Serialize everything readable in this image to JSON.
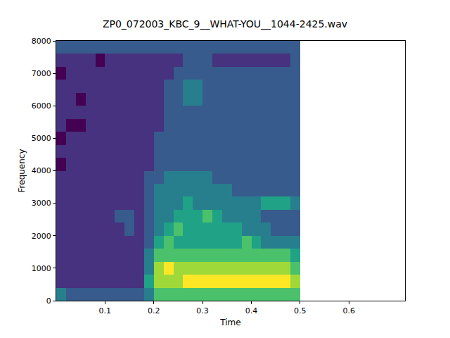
{
  "chart_data": {
    "type": "heatmap",
    "title": "ZP0_072003_KBC_9__WHAT-YOU__1044-2425.wav",
    "x_label": "Time",
    "y_label": "Frequency",
    "color": "Viridis",
    "grid": false,
    "xlim": [
      0,
      0.715
    ],
    "ylim": [
      0,
      8000
    ],
    "xticks": [
      0.1,
      0.2,
      0.3,
      0.4,
      0.5,
      0.6
    ],
    "yticks": [
      0,
      1000,
      2000,
      3000,
      4000,
      5000,
      6000,
      7000,
      8000
    ],
    "x": [
      0.01,
      0.03,
      0.05,
      0.07,
      0.09,
      0.11,
      0.13,
      0.15,
      0.17,
      0.19,
      0.21,
      0.23,
      0.25,
      0.27,
      0.29,
      0.31,
      0.33,
      0.35,
      0.37,
      0.39,
      0.41,
      0.43,
      0.45,
      0.47,
      0.49
    ],
    "y": [
      200,
      600,
      1000,
      1400,
      1800,
      2200,
      2600,
      3000,
      3400,
      3800,
      4200,
      4600,
      5000,
      5400,
      5800,
      6200,
      6600,
      7000,
      7400,
      7800
    ],
    "z": [
      [
        6,
        5,
        5,
        5,
        5,
        5,
        5,
        5,
        5,
        6,
        8,
        8,
        8,
        8,
        8,
        8,
        8,
        8,
        8,
        8,
        8,
        8,
        8,
        8,
        8
      ],
      [
        4,
        4,
        4,
        4,
        4,
        4,
        4,
        4,
        4,
        7,
        9,
        9,
        9,
        10,
        10,
        10,
        10,
        10,
        10,
        10,
        10,
        10,
        10,
        10,
        9
      ],
      [
        4,
        4,
        4,
        4,
        4,
        4,
        4,
        4,
        4,
        6,
        9,
        10,
        9,
        9,
        9,
        9,
        9,
        9,
        9,
        9,
        9,
        9,
        9,
        9,
        8
      ],
      [
        4,
        4,
        4,
        4,
        4,
        4,
        4,
        4,
        4,
        6,
        8,
        8,
        8,
        8,
        8,
        8,
        8,
        8,
        8,
        8,
        8,
        8,
        8,
        8,
        7
      ],
      [
        4,
        4,
        4,
        4,
        4,
        4,
        4,
        4,
        4,
        5,
        7,
        8,
        7,
        7,
        7,
        7,
        7,
        7,
        7,
        8,
        7,
        6,
        6,
        6,
        6
      ],
      [
        4,
        4,
        4,
        4,
        4,
        4,
        4,
        5,
        4,
        5,
        6,
        7,
        8,
        7,
        7,
        7,
        7,
        7,
        7,
        6,
        6,
        6,
        5,
        5,
        5
      ],
      [
        4,
        4,
        4,
        4,
        4,
        4,
        5,
        5,
        4,
        5,
        6,
        6,
        7,
        7,
        7,
        8,
        7,
        6,
        6,
        6,
        6,
        5,
        5,
        5,
        5
      ],
      [
        4,
        4,
        4,
        4,
        4,
        4,
        4,
        4,
        4,
        5,
        6,
        6,
        6,
        7,
        6,
        6,
        6,
        6,
        6,
        6,
        6,
        7,
        7,
        7,
        6
      ],
      [
        4,
        4,
        4,
        4,
        4,
        4,
        4,
        4,
        4,
        5,
        6,
        6,
        6,
        6,
        6,
        6,
        6,
        6,
        5,
        5,
        5,
        5,
        5,
        5,
        5
      ],
      [
        4,
        4,
        4,
        4,
        4,
        4,
        4,
        4,
        4,
        5,
        5,
        6,
        6,
        6,
        6,
        6,
        5,
        5,
        5,
        5,
        5,
        5,
        5,
        5,
        5
      ],
      [
        3,
        4,
        4,
        4,
        4,
        4,
        4,
        4,
        4,
        4,
        5,
        5,
        5,
        5,
        5,
        5,
        5,
        5,
        5,
        5,
        5,
        5,
        5,
        5,
        5
      ],
      [
        4,
        4,
        4,
        4,
        4,
        4,
        4,
        4,
        4,
        4,
        5,
        5,
        5,
        5,
        5,
        5,
        5,
        5,
        5,
        5,
        5,
        5,
        5,
        5,
        5
      ],
      [
        3,
        4,
        4,
        4,
        4,
        4,
        4,
        4,
        4,
        4,
        5,
        5,
        5,
        5,
        5,
        5,
        5,
        5,
        5,
        5,
        5,
        5,
        5,
        5,
        5
      ],
      [
        4,
        3,
        3,
        4,
        4,
        4,
        4,
        4,
        4,
        4,
        4,
        5,
        5,
        5,
        5,
        5,
        5,
        5,
        5,
        5,
        5,
        5,
        5,
        5,
        5
      ],
      [
        4,
        4,
        4,
        4,
        4,
        4,
        4,
        4,
        4,
        4,
        4,
        5,
        5,
        5,
        5,
        5,
        5,
        5,
        5,
        5,
        5,
        5,
        5,
        5,
        5
      ],
      [
        4,
        4,
        3,
        4,
        4,
        4,
        4,
        4,
        4,
        4,
        4,
        5,
        5,
        6,
        6,
        5,
        5,
        5,
        5,
        5,
        5,
        5,
        5,
        5,
        5
      ],
      [
        4,
        4,
        4,
        4,
        4,
        4,
        4,
        4,
        4,
        4,
        4,
        5,
        5,
        6,
        6,
        5,
        5,
        5,
        5,
        5,
        5,
        5,
        5,
        5,
        5
      ],
      [
        3,
        4,
        4,
        4,
        4,
        4,
        4,
        4,
        4,
        4,
        4,
        4,
        5,
        5,
        5,
        5,
        5,
        5,
        5,
        5,
        5,
        5,
        5,
        5,
        5
      ],
      [
        4,
        4,
        4,
        4,
        3,
        4,
        4,
        4,
        4,
        4,
        4,
        4,
        4,
        5,
        5,
        5,
        4,
        4,
        4,
        4,
        4,
        4,
        4,
        4,
        5
      ],
      [
        5,
        5,
        5,
        5,
        5,
        5,
        5,
        5,
        5,
        5,
        5,
        5,
        5,
        5,
        5,
        5,
        5,
        5,
        5,
        5,
        5,
        5,
        5,
        5,
        5
      ]
    ]
  }
}
